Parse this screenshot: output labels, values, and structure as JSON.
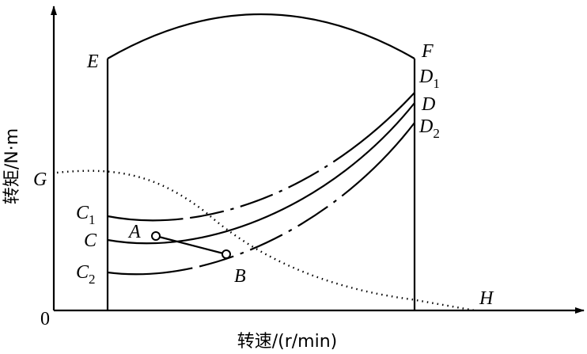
{
  "axes": {
    "y_label": "转矩/N·m",
    "x_label": "转速/(r/min)",
    "origin": "0"
  },
  "points": [
    {
      "text": "E"
    },
    {
      "text": "F"
    },
    {
      "text": "D",
      "sub": "1"
    },
    {
      "text": "D"
    },
    {
      "text": "D",
      "sub": "2"
    },
    {
      "text": "G"
    },
    {
      "text": "C",
      "sub": "1"
    },
    {
      "text": "C"
    },
    {
      "text": "C",
      "sub": "2"
    },
    {
      "text": "A"
    },
    {
      "text": "B"
    },
    {
      "text": "H"
    }
  ]
}
